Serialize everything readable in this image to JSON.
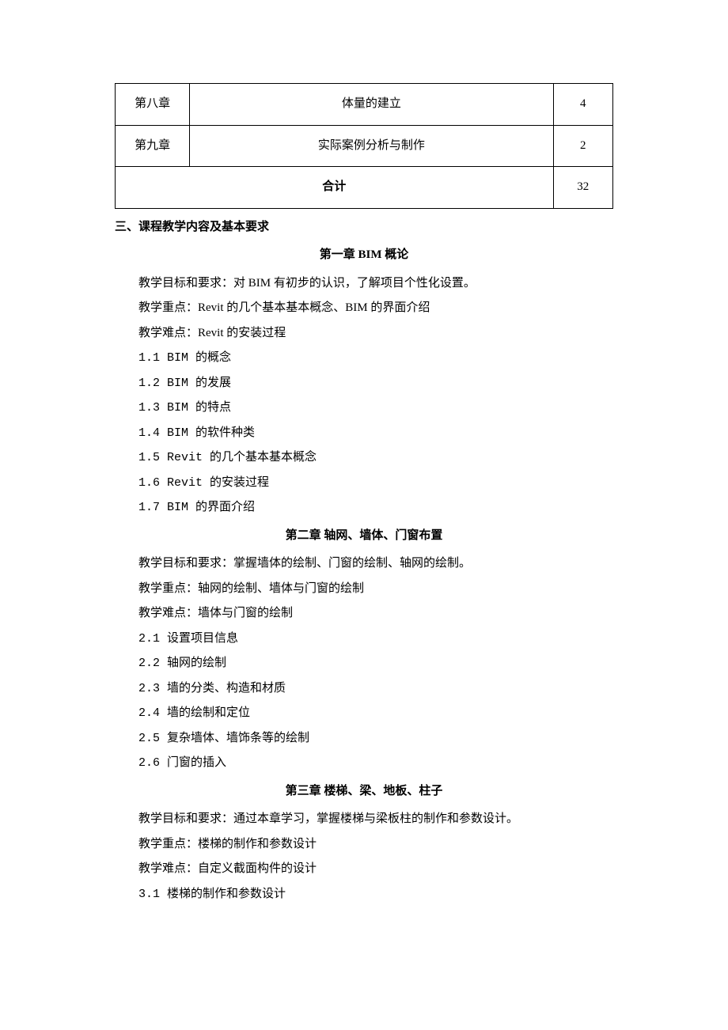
{
  "table": {
    "rows": [
      {
        "chapter": "第八章",
        "title": "体量的建立",
        "hours": "4"
      },
      {
        "chapter": "第九章",
        "title": "实际案例分析与制作",
        "hours": "2"
      }
    ],
    "total_label": "合计",
    "total_hours": "32"
  },
  "section3_heading": "三、课程教学内容及基本要求",
  "chapter1": {
    "title": "第一章 BIM 概论",
    "goal": "教学目标和要求：对 BIM 有初步的认识，了解项目个性化设置。",
    "focus": "教学重点：Revit 的几个基本基本概念、BIM 的界面介绍",
    "difficulty": "教学难点：Revit 的安装过程",
    "items": [
      "1.1 BIM 的概念",
      "1.2 BIM 的发展",
      "1.3 BIM 的特点",
      "1.4 BIM 的软件种类",
      "1.5 Revit 的几个基本基本概念",
      "1.6 Revit 的安装过程",
      "1.7 BIM 的界面介绍"
    ]
  },
  "chapter2": {
    "title": "第二章 轴网、墙体、门窗布置",
    "goal": "教学目标和要求：掌握墙体的绘制、门窗的绘制、轴网的绘制。",
    "focus": "教学重点：轴网的绘制、墙体与门窗的绘制",
    "difficulty": "教学难点：墙体与门窗的绘制",
    "items": [
      "2.1 设置项目信息",
      "2.2 轴网的绘制",
      "2.3 墙的分类、构造和材质",
      "2.4 墙的绘制和定位",
      "2.5 复杂墙体、墙饰条等的绘制",
      "2.6 门窗的插入"
    ]
  },
  "chapter3": {
    "title": "第三章 楼梯、梁、地板、柱子",
    "goal": "教学目标和要求：通过本章学习，掌握楼梯与梁板柱的制作和参数设计。",
    "focus": "教学重点：楼梯的制作和参数设计",
    "difficulty": "教学难点：自定义截面构件的设计",
    "items": [
      "3.1 楼梯的制作和参数设计"
    ]
  }
}
